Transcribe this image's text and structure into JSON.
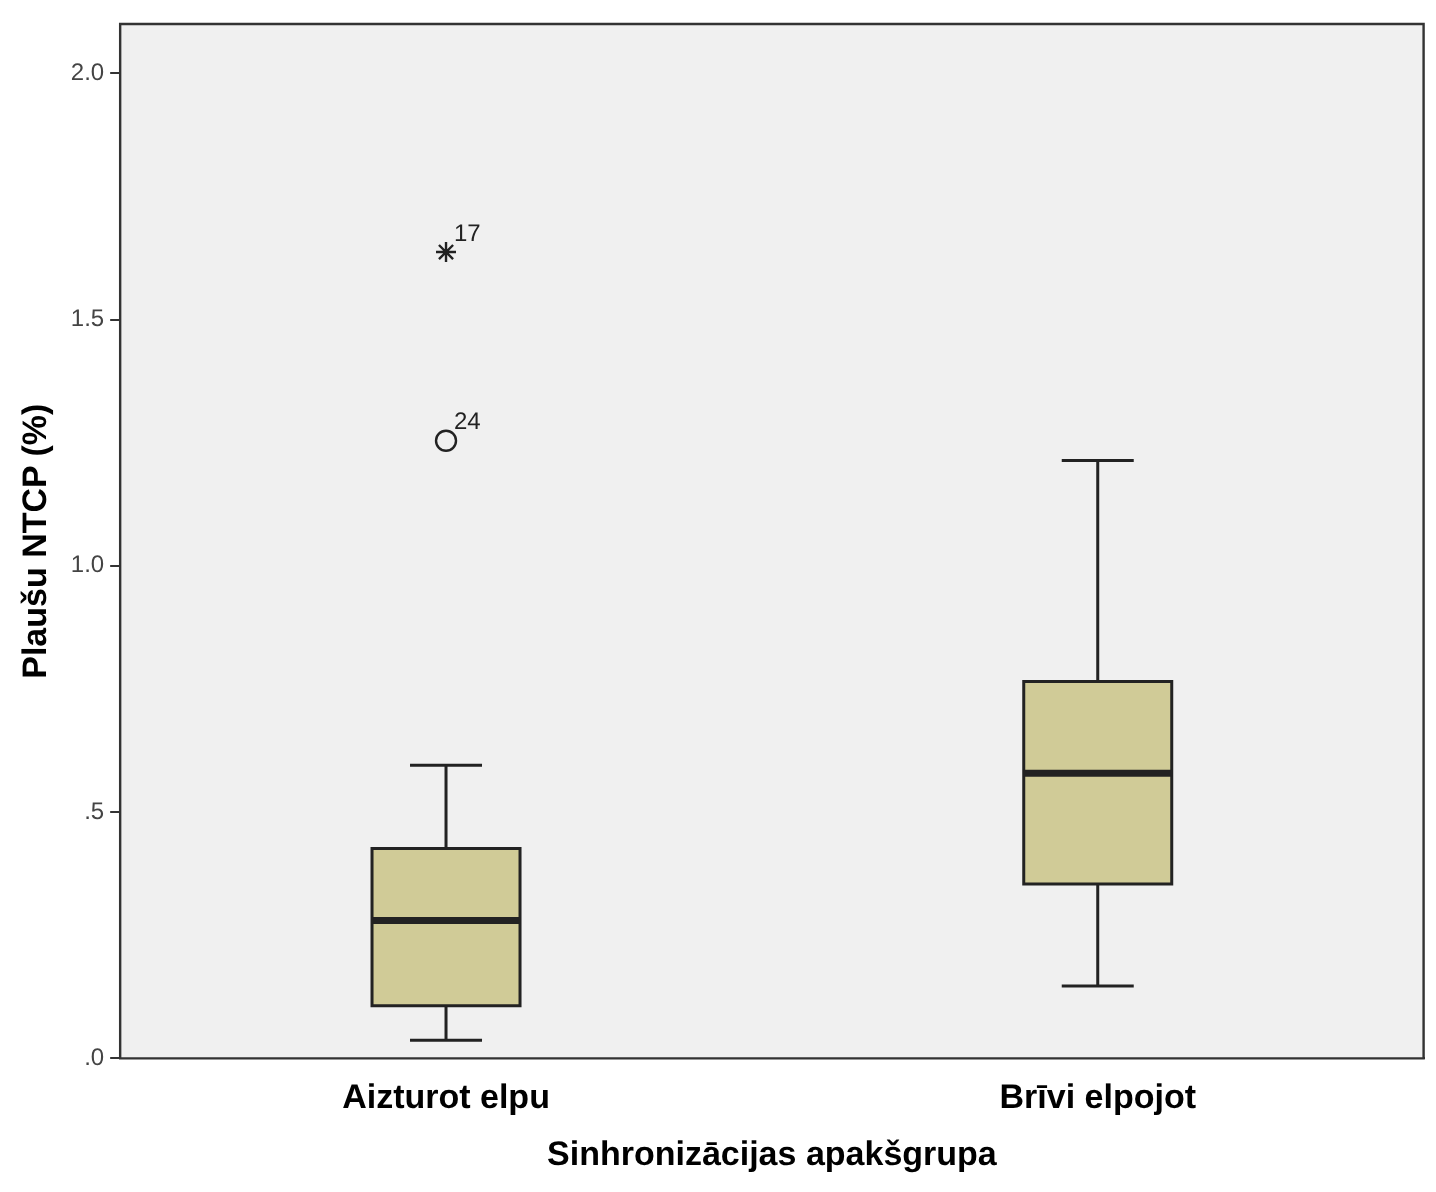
{
  "chart_data": {
    "type": "box",
    "xlabel": "Sinhronizācijas apakšgrupa",
    "ylabel": "Plaušu NTCP (%)",
    "categories": [
      "Aizturot elpu",
      "Brīvi elpojot"
    ],
    "color": "#d0cb97",
    "boxes": [
      {
        "low": 0.037,
        "q1": 0.107,
        "median": 0.28,
        "q3": 0.426,
        "high": 0.595,
        "outliers": [
          1.254,
          1.637
        ]
      },
      {
        "low": 0.147,
        "q1": 0.354,
        "median": 0.579,
        "q3": 0.765,
        "high": 1.214
      }
    ],
    "ylim": [
      0,
      2.1
    ],
    "yticks": [
      {
        "value": 0,
        "label": ".0"
      },
      {
        "value": 0.5,
        "label": ".5"
      },
      {
        "value": 1,
        "label": "1.0"
      },
      {
        "value": 1.5,
        "label": "1.5"
      },
      {
        "value": 2,
        "label": "2.0"
      }
    ],
    "annotations": [
      "24",
      "17"
    ],
    "grid": false,
    "legend": false
  }
}
